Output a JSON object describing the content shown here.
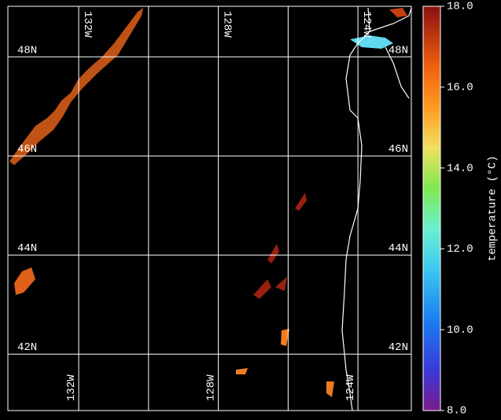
{
  "map": {
    "type": "map",
    "latlim": [
      40.86,
      49.02
    ],
    "lonlim": [
      -134.03,
      -122.47
    ],
    "lat_ticks": [
      {
        "value": 48,
        "label": "48N"
      },
      {
        "value": 46,
        "label": "46N"
      },
      {
        "value": 44,
        "label": "44N"
      },
      {
        "value": 42,
        "label": "42N"
      }
    ],
    "lon_ticks": [
      {
        "value": -132,
        "label": "132W"
      },
      {
        "value": -130,
        "label": null
      },
      {
        "value": -128,
        "label": "128W"
      },
      {
        "value": -126,
        "label": null
      },
      {
        "value": -124,
        "label": "124W"
      }
    ],
    "colorbar": {
      "label": "temperature (°C)",
      "lim": [
        8,
        18
      ],
      "ticks": [
        {
          "value": 18,
          "label": "18.0"
        },
        {
          "value": 16,
          "label": "16.0"
        },
        {
          "value": 14,
          "label": "14.0"
        },
        {
          "value": 12,
          "label": "12.0"
        },
        {
          "value": 10,
          "label": "10.0"
        },
        {
          "value": 8,
          "label": "8.0"
        }
      ]
    }
  }
}
